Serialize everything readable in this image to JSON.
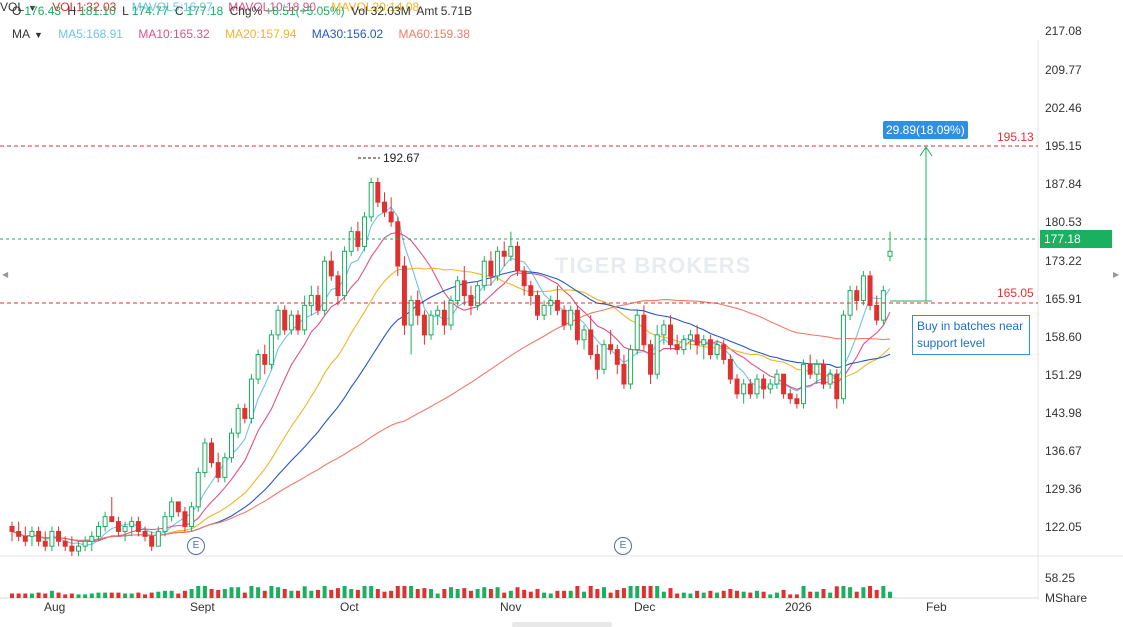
{
  "ohlc": {
    "o_label": "O",
    "o": "176.43",
    "h_label": "H",
    "h": "181.10",
    "l_label": "L",
    "l": "174.77",
    "c_label": "C",
    "c": "177.18",
    "chg_label": "Chg%",
    "chg": "+8.51(+5.05%)",
    "vol_label": "Vol",
    "vol": "32.03M",
    "amt_label": "Amt",
    "amt": "5.71B"
  },
  "ma_legend": {
    "label": "MA",
    "ma5": "MA5:168.91",
    "ma10": "MA10:165.32",
    "ma20": "MA20:157.94",
    "ma30": "MA30:156.02",
    "ma60": "MA60:159.38"
  },
  "vol_legend": {
    "label": "VOL",
    "vol1": "VOL1:32.03",
    "mavol5": "MAVOL5:16.97",
    "mavol10": "MAVOL10:18.90",
    "mavol20": "MAVOL20:14.08"
  },
  "colors": {
    "up": "#19b05f",
    "down": "#e03131",
    "ma5": "#6ec3e8",
    "ma10": "#e0508a",
    "ma20": "#f0b429",
    "ma30": "#2457c5",
    "ma60": "#f07a6a",
    "level": "#e03131",
    "price_line": "#19b05f",
    "accent": "#2f8fe0"
  },
  "price_axis": [
    "217.08",
    "209.77",
    "202.46",
    "195.15",
    "187.84",
    "180.53",
    "173.22",
    "165.91",
    "158.60",
    "151.29",
    "143.98",
    "136.67",
    "129.36",
    "122.05"
  ],
  "volume_axis": {
    "value": "58.25",
    "unit": "MShare"
  },
  "time_axis": [
    "Aug",
    "Sept",
    "Oct",
    "Nov",
    "Dec",
    "2026",
    "Feb"
  ],
  "current_price": "177.18",
  "resistance_level": "195.13",
  "support_level": "165.05",
  "high_label": "192.67",
  "measure_label": "29.89(18.09%)",
  "annotation": "Buy in batches near support level",
  "watermark": "TIGER BROKERS",
  "earnings_marker": "E",
  "chart_data": {
    "type": "candlestick",
    "ylim": [
      115,
      220
    ],
    "levels": [
      195.13,
      165.05
    ],
    "current": 177.18,
    "candles": [
      [
        121,
        122,
        118,
        120
      ],
      [
        120,
        122,
        118,
        119
      ],
      [
        119,
        121,
        117,
        118
      ],
      [
        119,
        121,
        117,
        120
      ],
      [
        120,
        121,
        117,
        118
      ],
      [
        118,
        120,
        116,
        117
      ],
      [
        117,
        121,
        116,
        120
      ],
      [
        120,
        121,
        117,
        118
      ],
      [
        118,
        119,
        116,
        117
      ],
      [
        117,
        119,
        115,
        116
      ],
      [
        116,
        118,
        115,
        117
      ],
      [
        117,
        119,
        116,
        118
      ],
      [
        118,
        120,
        116,
        119
      ],
      [
        119,
        122,
        118,
        121
      ],
      [
        121,
        124,
        120,
        123
      ],
      [
        123,
        127,
        122,
        122
      ],
      [
        122,
        123,
        119,
        120
      ],
      [
        120,
        122,
        118,
        121
      ],
      [
        121,
        123,
        119,
        122
      ],
      [
        122,
        123,
        119,
        120
      ],
      [
        120,
        121,
        118,
        119
      ],
      [
        119,
        120,
        116,
        117
      ],
      [
        117,
        121,
        117,
        120
      ],
      [
        120,
        124,
        119,
        123
      ],
      [
        123,
        127,
        122,
        126
      ],
      [
        126,
        126,
        123,
        124
      ],
      [
        124,
        125,
        120,
        121
      ],
      [
        121,
        126,
        120,
        125
      ],
      [
        125,
        133,
        124,
        132
      ],
      [
        132,
        139,
        131,
        138
      ],
      [
        138,
        139,
        133,
        134
      ],
      [
        134,
        136,
        130,
        131
      ],
      [
        131,
        136,
        130,
        135
      ],
      [
        135,
        141,
        134,
        140
      ],
      [
        140,
        146,
        139,
        145
      ],
      [
        145,
        146,
        142,
        143
      ],
      [
        143,
        152,
        142,
        151
      ],
      [
        151,
        157,
        150,
        156
      ],
      [
        156,
        158,
        152,
        154
      ],
      [
        154,
        161,
        153,
        160
      ],
      [
        160,
        166,
        159,
        165
      ],
      [
        165,
        166,
        160,
        161
      ],
      [
        161,
        165,
        160,
        164
      ],
      [
        164,
        165,
        160,
        161
      ],
      [
        161,
        168,
        160,
        166
      ],
      [
        166,
        170,
        164,
        168
      ],
      [
        168,
        170,
        164,
        165
      ],
      [
        165,
        176,
        164,
        175
      ],
      [
        175,
        177,
        171,
        172
      ],
      [
        172,
        173,
        166,
        168
      ],
      [
        168,
        178,
        167,
        177
      ],
      [
        177,
        182,
        176,
        181
      ],
      [
        181,
        183,
        177,
        178
      ],
      [
        178,
        185,
        177,
        184
      ],
      [
        184,
        192,
        183,
        191
      ],
      [
        191,
        192,
        186,
        187
      ],
      [
        187,
        189,
        184,
        185
      ],
      [
        185,
        188,
        182,
        183
      ],
      [
        183,
        184,
        172,
        174
      ],
      [
        174,
        176,
        160,
        162
      ],
      [
        162,
        168,
        156,
        167
      ],
      [
        167,
        169,
        162,
        164
      ],
      [
        164,
        165,
        158,
        160
      ],
      [
        160,
        165,
        159,
        164
      ],
      [
        164,
        166,
        162,
        165
      ],
      [
        165,
        167,
        160,
        162
      ],
      [
        162,
        168,
        161,
        167
      ],
      [
        167,
        172,
        166,
        171
      ],
      [
        171,
        174,
        166,
        168
      ],
      [
        168,
        170,
        164,
        166
      ],
      [
        166,
        171,
        165,
        170
      ],
      [
        170,
        176,
        169,
        175
      ],
      [
        175,
        177,
        170,
        172
      ],
      [
        172,
        178,
        171,
        177
      ],
      [
        177,
        179,
        174,
        176
      ],
      [
        176,
        181,
        175,
        178
      ],
      [
        178,
        179,
        172,
        173
      ],
      [
        173,
        174,
        168,
        170
      ],
      [
        170,
        171,
        166,
        168
      ],
      [
        168,
        169,
        163,
        164
      ],
      [
        164,
        167,
        163,
        166
      ],
      [
        166,
        168,
        164,
        167
      ],
      [
        167,
        170,
        164,
        165
      ],
      [
        165,
        166,
        161,
        162
      ],
      [
        162,
        166,
        161,
        165
      ],
      [
        165,
        166,
        158,
        159
      ],
      [
        159,
        162,
        157,
        161
      ],
      [
        161,
        164,
        155,
        156
      ],
      [
        156,
        158,
        151,
        153
      ],
      [
        153,
        159,
        152,
        158
      ],
      [
        158,
        161,
        156,
        157
      ],
      [
        157,
        158,
        152,
        154
      ],
      [
        154,
        156,
        149,
        150
      ],
      [
        150,
        158,
        149,
        157
      ],
      [
        157,
        165,
        156,
        164
      ],
      [
        164,
        166,
        157,
        158
      ],
      [
        158,
        159,
        150,
        152
      ],
      [
        152,
        162,
        151,
        160
      ],
      [
        160,
        163,
        158,
        162
      ],
      [
        162,
        164,
        157,
        158
      ],
      [
        158,
        160,
        156,
        157
      ],
      [
        157,
        160,
        156,
        159
      ],
      [
        159,
        161,
        157,
        160
      ],
      [
        160,
        162,
        156,
        158
      ],
      [
        158,
        160,
        155,
        159
      ],
      [
        159,
        160,
        155,
        156
      ],
      [
        156,
        159,
        155,
        158
      ],
      [
        158,
        159,
        154,
        155
      ],
      [
        155,
        156,
        150,
        151
      ],
      [
        151,
        152,
        147,
        148
      ],
      [
        148,
        151,
        146,
        150
      ],
      [
        150,
        151,
        147,
        148
      ],
      [
        148,
        152,
        147,
        151
      ],
      [
        151,
        152,
        147,
        149
      ],
      [
        149,
        151,
        148,
        150
      ],
      [
        150,
        153,
        149,
        152
      ],
      [
        152,
        152,
        147,
        148
      ],
      [
        148,
        149,
        146,
        147
      ],
      [
        147,
        148,
        145,
        146
      ],
      [
        146,
        155,
        145,
        154
      ],
      [
        154,
        156,
        151,
        152
      ],
      [
        152,
        155,
        150,
        154
      ],
      [
        154,
        155,
        149,
        150
      ],
      [
        150,
        153,
        149,
        152
      ],
      [
        152,
        153,
        145,
        147
      ],
      [
        147,
        165,
        146,
        164
      ],
      [
        164,
        170,
        163,
        169
      ],
      [
        169,
        170,
        165,
        167
      ],
      [
        167,
        173,
        166,
        172
      ],
      [
        172,
        173,
        165,
        166
      ],
      [
        166,
        168,
        162,
        163
      ],
      [
        163,
        170,
        162,
        169
      ],
      [
        176,
        181,
        175,
        177
      ]
    ]
  }
}
